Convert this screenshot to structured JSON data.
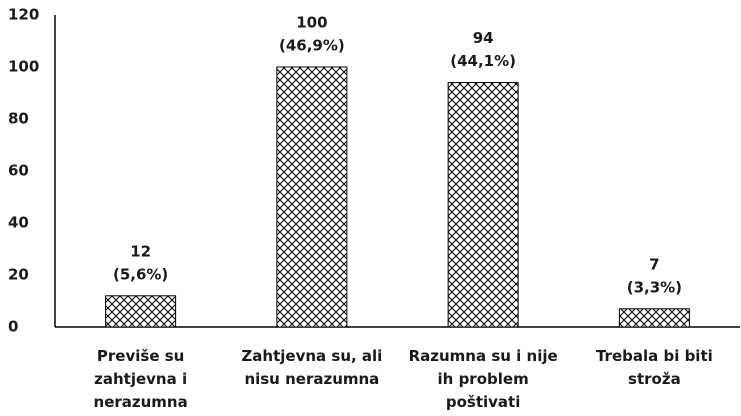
{
  "chart_data": {
    "type": "bar",
    "categories": [
      "Previše su zahtjevna i nerazumna",
      "Zahtjevna su, ali nisu nerazumna",
      "Razumna su i nije ih problem poštivati",
      "Trebala bi biti stroža"
    ],
    "values": [
      12,
      100,
      94,
      7
    ],
    "percent_labels": [
      "(5,6%)",
      "(46,9%)",
      "(44,1%)",
      "(3,3%)"
    ],
    "color": "#000000",
    "ylim": [
      0,
      120
    ],
    "yticks": [
      0,
      20,
      40,
      60,
      80,
      100,
      120
    ]
  }
}
